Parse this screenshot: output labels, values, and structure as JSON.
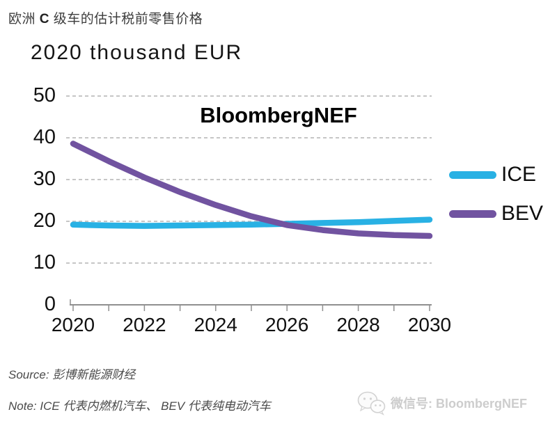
{
  "page": {
    "title": {
      "prefix": "欧洲 ",
      "highlight": "C",
      "suffix": " 级车的估计税前零售价格"
    },
    "watermark": "BloombergNEF",
    "source": "Source: 彭博新能源财经",
    "note": "Note: ICE 代表内燃机汽车、 BEV 代表纯电动汽车",
    "wechat_watermark": "微信号: BloombergNEF"
  },
  "chart_data": {
    "type": "line",
    "title": "2020 thousand EUR",
    "xlabel": "",
    "ylabel": "2020 thousand EUR",
    "x": [
      2020,
      2021,
      2022,
      2023,
      2024,
      2025,
      2026,
      2027,
      2028,
      2029,
      2030
    ],
    "x_tick_labels": [
      "2020",
      "2022",
      "2024",
      "2026",
      "2028",
      "2030"
    ],
    "y_tick_labels": [
      "0",
      "10",
      "20",
      "30",
      "40",
      "50"
    ],
    "ylim": [
      0,
      50
    ],
    "grid": "horizontal-dashed",
    "grid_color": "#c6c6c6",
    "axis_color": "#8f8f8f",
    "legend_position": "right",
    "series": [
      {
        "name": "ICE",
        "color": "#29b1e4",
        "values": [
          19.2,
          19.0,
          18.9,
          19.0,
          19.1,
          19.2,
          19.4,
          19.6,
          19.8,
          20.1,
          20.4
        ]
      },
      {
        "name": "BEV",
        "color": "#7153a0",
        "values": [
          38.6,
          34.4,
          30.5,
          27.0,
          23.9,
          21.2,
          19.1,
          17.9,
          17.1,
          16.7,
          16.5
        ]
      }
    ],
    "annotations": [
      "BloombergNEF"
    ]
  }
}
